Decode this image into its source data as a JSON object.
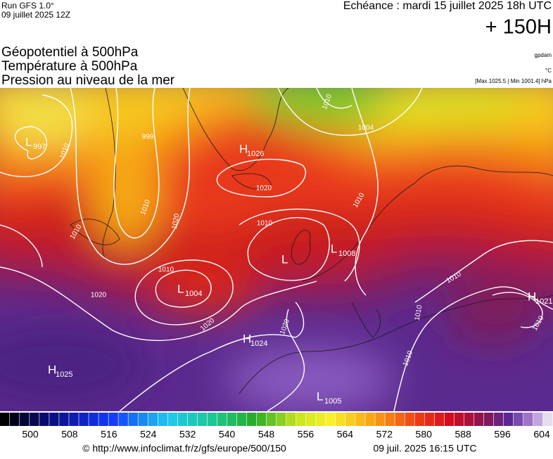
{
  "header": {
    "run": "Run GFS 1.0°",
    "run_date": "09 juillet 2025 12Z",
    "valid": "Echéance : mardi 15 juillet 2025 18h UTC",
    "lead": "+ 150H"
  },
  "titles": [
    "Géopotentiel à 500hPa",
    "Température à 500hPa",
    "Pression au niveau de la mer"
  ],
  "units": [
    "gpdam",
    "°C",
    "[Max 1025.5 | Min 1001.4] hPa"
  ],
  "pressure_centers": [
    {
      "symbol": "L",
      "value": 997
    },
    {
      "symbol": "H",
      "value": 1026
    },
    {
      "symbol": "L"
    },
    {
      "symbol": "L",
      "value": 1008
    },
    {
      "symbol": "L",
      "value": 1004
    },
    {
      "symbol": "H",
      "value": 1024
    },
    {
      "symbol": "H",
      "value": 1025
    },
    {
      "symbol": "L",
      "value": 1005
    },
    {
      "symbol": "H",
      "value": 1021
    }
  ],
  "isobar_labels": [
    1010,
    1004,
    999,
    1010,
    1010,
    1020,
    1010,
    1020,
    1010,
    1010,
    1020,
    1020,
    1020,
    1010,
    1010,
    1010,
    1010,
    1010
  ],
  "colorbar_ticks": [
    500,
    508,
    516,
    524,
    532,
    540,
    548,
    556,
    564,
    572,
    580,
    588,
    596,
    604
  ],
  "footer": {
    "source": "© http://www.infoclimat.fr/z/gfs/europe/500/150",
    "generated": "09 juil. 2025 16:15 UTC"
  }
}
